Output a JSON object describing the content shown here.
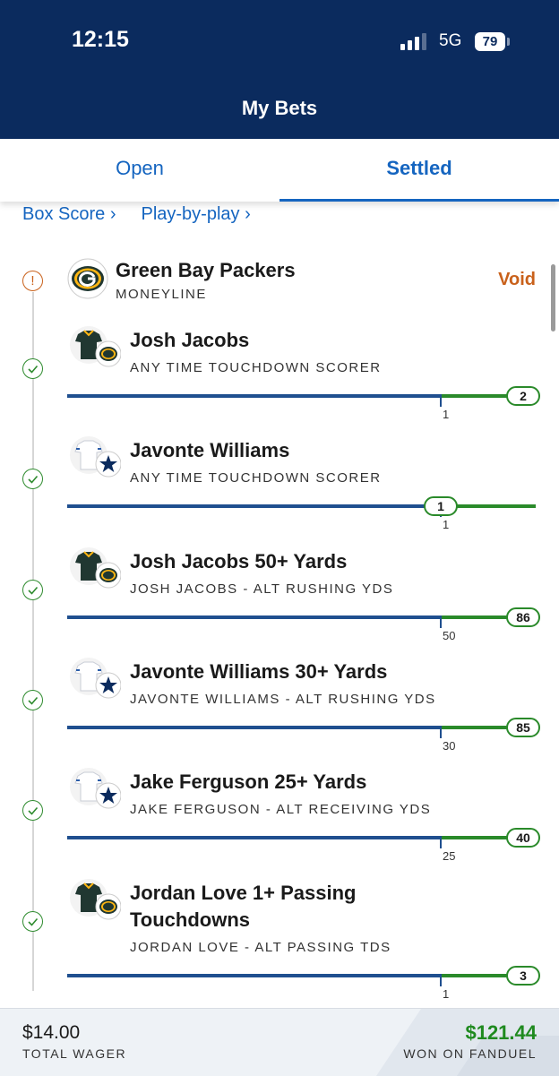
{
  "status_bar": {
    "time": "12:15",
    "network": "5G",
    "battery": "79"
  },
  "header": {
    "title": "My Bets"
  },
  "tabs": [
    "Open",
    "Settled"
  ],
  "links": [
    "Box Score ›",
    "Play-by-play ›"
  ],
  "bet": {
    "title": "Green Bay Packers",
    "market": "MONEYLINE",
    "status": "Void"
  },
  "legs": [
    {
      "title": "Josh Jacobs",
      "market": "ANY TIME TOUCHDOWN SCORER",
      "threshold": 1,
      "result": 2
    },
    {
      "title": "Javonte Williams",
      "market": "ANY TIME TOUCHDOWN SCORER",
      "threshold": 1,
      "result": 1
    },
    {
      "title": "Josh Jacobs 50+ Yards",
      "market": "JOSH JACOBS - ALT RUSHING YDS",
      "threshold": 50,
      "result": 86
    },
    {
      "title": "Javonte Williams 30+ Yards",
      "market": "JAVONTE WILLIAMS - ALT RUSHING YDS",
      "threshold": 30,
      "result": 85
    },
    {
      "title": "Jake Ferguson 25+ Yards",
      "market": "JAKE FERGUSON - ALT RECEIVING YDS",
      "threshold": 25,
      "result": 40
    },
    {
      "title": "Jordan Love 1+ Passing Touchdowns",
      "market": "JORDAN LOVE - ALT PASSING TDS",
      "threshold": 1,
      "result": 3
    }
  ],
  "footer": {
    "wager": "$14.00",
    "wager_label": "TOTAL WAGER",
    "payout": "$121.44",
    "payout_label": "WON ON FANDUEL"
  }
}
